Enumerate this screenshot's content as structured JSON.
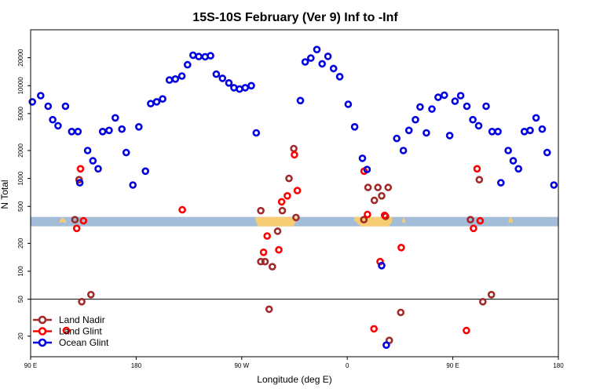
{
  "chart_data": {
    "type": "scatter",
    "title": "15S-10S February (Ver 9)   Inf to -Inf",
    "xlabel": "Longitude (deg E)",
    "ylabel": "N Total",
    "y_scale": "log",
    "xlim": [
      90,
      540
    ],
    "ylim": [
      12,
      40000
    ],
    "x_ticks": [
      {
        "value": 90,
        "label": "90 E"
      },
      {
        "value": 180,
        "label": "180"
      },
      {
        "value": 270,
        "label": "90 W"
      },
      {
        "value": 360,
        "label": "0"
      },
      {
        "value": 450,
        "label": "90 E"
      },
      {
        "value": 540,
        "label": "180"
      }
    ],
    "y_ticks": [
      {
        "value": 20,
        "label": "20"
      },
      {
        "value": 50,
        "label": "50"
      },
      {
        "value": 100,
        "label": "100"
      },
      {
        "value": 200,
        "label": "200"
      },
      {
        "value": 500,
        "label": "500"
      },
      {
        "value": 1000,
        "label": "1000"
      },
      {
        "value": 2000,
        "label": "2000"
      },
      {
        "value": 5000,
        "label": "5000"
      },
      {
        "value": 10000,
        "label": "10000"
      },
      {
        "value": 20000,
        "label": "20000"
      }
    ],
    "reference_line": 50,
    "legend_position": "bottom-left",
    "colors": {
      "land_band": "#f7cd74",
      "ocean_band": "#a3bcd8",
      "land_nadir": "#a02a2a",
      "land_glint": "#ff0000",
      "ocean_glint": "#0000e0"
    },
    "band": {
      "y_low": 305,
      "y_high": 385,
      "land_segments": [
        {
          "x": [
            114.7,
            117.1,
            120.3
          ],
          "low": [
            332,
            340,
            332
          ],
          "high": [
            350,
            380,
            350
          ]
        },
        {
          "x": [
            281.4,
            283.6,
            287.2,
            292.6,
            301.9,
            313.9,
            318.0
          ],
          "low": [
            375,
            305,
            305,
            305,
            305,
            305,
            375
          ],
          "high": [
            380,
            382,
            384,
            384,
            384,
            383,
            380
          ]
        },
        {
          "x": [
            365.9,
            371.8,
            377.5,
            391.1,
            395.4,
            398.1
          ],
          "low": [
            352,
            305,
            305,
            305,
            305,
            340
          ],
          "high": [
            385,
            385,
            385,
            385,
            385,
            385
          ]
        },
        {
          "x": [
            138.9,
            141.9,
            145.2
          ],
          "low": [
            378,
            384,
            378
          ],
          "high": [
            380,
            385,
            380
          ]
        },
        {
          "x": [
            406.8,
            408.1,
            409.6
          ],
          "low": [
            330,
            340,
            330
          ],
          "high": [
            350,
            385,
            350
          ]
        },
        {
          "x": [
            531.9,
            533.8,
            535.7
          ],
          "low": [
            376,
            382,
            376
          ],
          "high": [
            378,
            385,
            378
          ]
        },
        {
          "x": [
            497.6,
            499.3,
            501.0
          ],
          "low": [
            330,
            340,
            330
          ],
          "high": [
            360,
            384,
            360
          ]
        }
      ]
    },
    "series": [
      {
        "name": "Land Nadir",
        "key": "land_nadir",
        "points": [
          [
            127.8,
            360
          ],
          [
            131.3,
            970
          ],
          [
            133.6,
            47
          ],
          [
            141.4,
            56
          ],
          [
            286.3,
            450
          ],
          [
            286.3,
            127
          ],
          [
            289.9,
            127
          ],
          [
            293.4,
            39
          ],
          [
            296.1,
            112
          ],
          [
            300.6,
            270
          ],
          [
            304.6,
            450
          ],
          [
            310.3,
            1000
          ],
          [
            314.4,
            2100
          ],
          [
            316.3,
            380
          ],
          [
            374.1,
            360
          ],
          [
            377.7,
            800
          ],
          [
            383.1,
            580
          ],
          [
            386.1,
            800
          ],
          [
            389.3,
            650
          ],
          [
            392.7,
            390
          ],
          [
            394.9,
            800
          ],
          [
            395.8,
            18
          ],
          [
            405.6,
            36
          ],
          [
            465.0,
            360
          ],
          [
            472.6,
            970
          ],
          [
            475.6,
            47
          ],
          [
            482.9,
            56
          ]
        ]
      },
      {
        "name": "Land Glint",
        "key": "land_glint",
        "points": [
          [
            120.4,
            23
          ],
          [
            129.3,
            290
          ],
          [
            132.5,
            1270
          ],
          [
            135.1,
            350
          ],
          [
            219.3,
            460
          ],
          [
            288.6,
            160
          ],
          [
            291.7,
            240
          ],
          [
            301.6,
            170
          ],
          [
            304.0,
            560
          ],
          [
            308.9,
            650
          ],
          [
            314.9,
            1800
          ],
          [
            317.4,
            740
          ],
          [
            374.3,
            1200
          ],
          [
            377.2,
            410
          ],
          [
            382.8,
            24
          ],
          [
            388.0,
            127
          ],
          [
            391.9,
            400
          ],
          [
            406.0,
            180
          ],
          [
            461.6,
            23
          ],
          [
            467.6,
            290
          ],
          [
            470.7,
            1270
          ],
          [
            473.3,
            350
          ]
        ]
      },
      {
        "name": "Ocean Glint",
        "key": "ocean_glint",
        "points": [
          [
            91.5,
            6700
          ],
          [
            98.6,
            7800
          ],
          [
            104.9,
            6000
          ],
          [
            108.8,
            4300
          ],
          [
            113.4,
            3700
          ],
          [
            119.7,
            6000
          ],
          [
            125.0,
            3200
          ],
          [
            130.4,
            3200
          ],
          [
            131.9,
            900
          ],
          [
            138.6,
            2000
          ],
          [
            143.1,
            1550
          ],
          [
            147.6,
            1270
          ],
          [
            151.4,
            3200
          ],
          [
            156.9,
            3300
          ],
          [
            162.2,
            4500
          ],
          [
            167.8,
            3400
          ],
          [
            171.5,
            1900
          ],
          [
            177.2,
            850
          ],
          [
            182.3,
            3600
          ],
          [
            187.9,
            1200
          ],
          [
            192.4,
            6400
          ],
          [
            197.5,
            6700
          ],
          [
            202.6,
            7200
          ],
          [
            208.3,
            11500
          ],
          [
            213.4,
            11800
          ],
          [
            219.0,
            12700
          ],
          [
            223.8,
            16800
          ],
          [
            228.5,
            21300
          ],
          [
            233.4,
            20600
          ],
          [
            238.8,
            20500
          ],
          [
            243.4,
            21000
          ],
          [
            248.3,
            13300
          ],
          [
            253.6,
            12000
          ],
          [
            259.0,
            10700
          ],
          [
            263.4,
            9500
          ],
          [
            268.1,
            9200
          ],
          [
            273.0,
            9500
          ],
          [
            278.2,
            10000
          ],
          [
            282.4,
            3100
          ],
          [
            320.0,
            6900
          ],
          [
            324.1,
            18000
          ],
          [
            328.9,
            19800
          ],
          [
            334.1,
            24500
          ],
          [
            338.6,
            17200
          ],
          [
            343.5,
            20700
          ],
          [
            348.3,
            15300
          ],
          [
            353.6,
            12500
          ],
          [
            360.8,
            6300
          ],
          [
            366.3,
            3600
          ],
          [
            372.9,
            1650
          ],
          [
            376.9,
            1250
          ],
          [
            389.3,
            115
          ],
          [
            393.3,
            16
          ],
          [
            402.2,
            2700
          ],
          [
            407.8,
            2000
          ],
          [
            412.6,
            3300
          ],
          [
            418.1,
            4300
          ],
          [
            422.1,
            5900
          ],
          [
            427.4,
            3100
          ],
          [
            432.2,
            5600
          ],
          [
            437.5,
            7500
          ],
          [
            442.8,
            7900
          ],
          [
            447.3,
            2900
          ],
          [
            451.9,
            6800
          ],
          [
            456.7,
            7800
          ],
          [
            462.0,
            6000
          ],
          [
            467.1,
            4300
          ],
          [
            472.0,
            3700
          ],
          [
            478.4,
            6000
          ],
          [
            483.5,
            3200
          ],
          [
            488.5,
            3200
          ],
          [
            491.0,
            900
          ],
          [
            497.2,
            2000
          ],
          [
            501.5,
            1550
          ],
          [
            506.0,
            1270
          ],
          [
            511.0,
            3200
          ],
          [
            515.9,
            3300
          ],
          [
            521.0,
            4500
          ],
          [
            526.2,
            3400
          ],
          [
            530.4,
            1900
          ],
          [
            536.2,
            850
          ]
        ]
      }
    ]
  }
}
